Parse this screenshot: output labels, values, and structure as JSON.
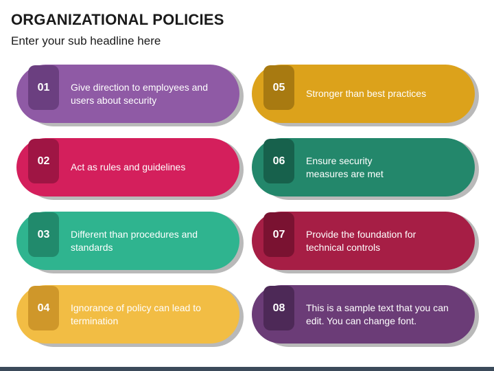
{
  "header": {
    "title": "ORGANIZATIONAL POLICIES",
    "subtitle": "Enter your sub headline here"
  },
  "items": [
    {
      "number": "01",
      "text": "Give direction to employees and\nusers about security",
      "color": "#8f5aa5",
      "dark": "#6b3f80"
    },
    {
      "number": "02",
      "text": "Act as rules and guidelines",
      "color": "#d41f5c",
      "dark": "#9f1544"
    },
    {
      "number": "03",
      "text": "Different than procedures and\nstandards",
      "color": "#2fb48f",
      "dark": "#218a6c"
    },
    {
      "number": "04",
      "text": "Ignorance of policy can lead to\ntermination",
      "color": "#f2bd44",
      "dark": "#cf972a"
    },
    {
      "number": "05",
      "text": "Stronger than best practices",
      "color": "#dca21b",
      "dark": "#a87a11"
    },
    {
      "number": "06",
      "text": "Ensure security\nmeasures are met",
      "color": "#23876b",
      "dark": "#17614c"
    },
    {
      "number": "07",
      "text": "Provide the foundation for\ntechnical controls",
      "color": "#a61e45",
      "dark": "#7a1231"
    },
    {
      "number": "08",
      "text": "This is a sample text that you can\nedit. You can change font.",
      "color": "#6b3c77",
      "dark": "#4d2957"
    }
  ]
}
